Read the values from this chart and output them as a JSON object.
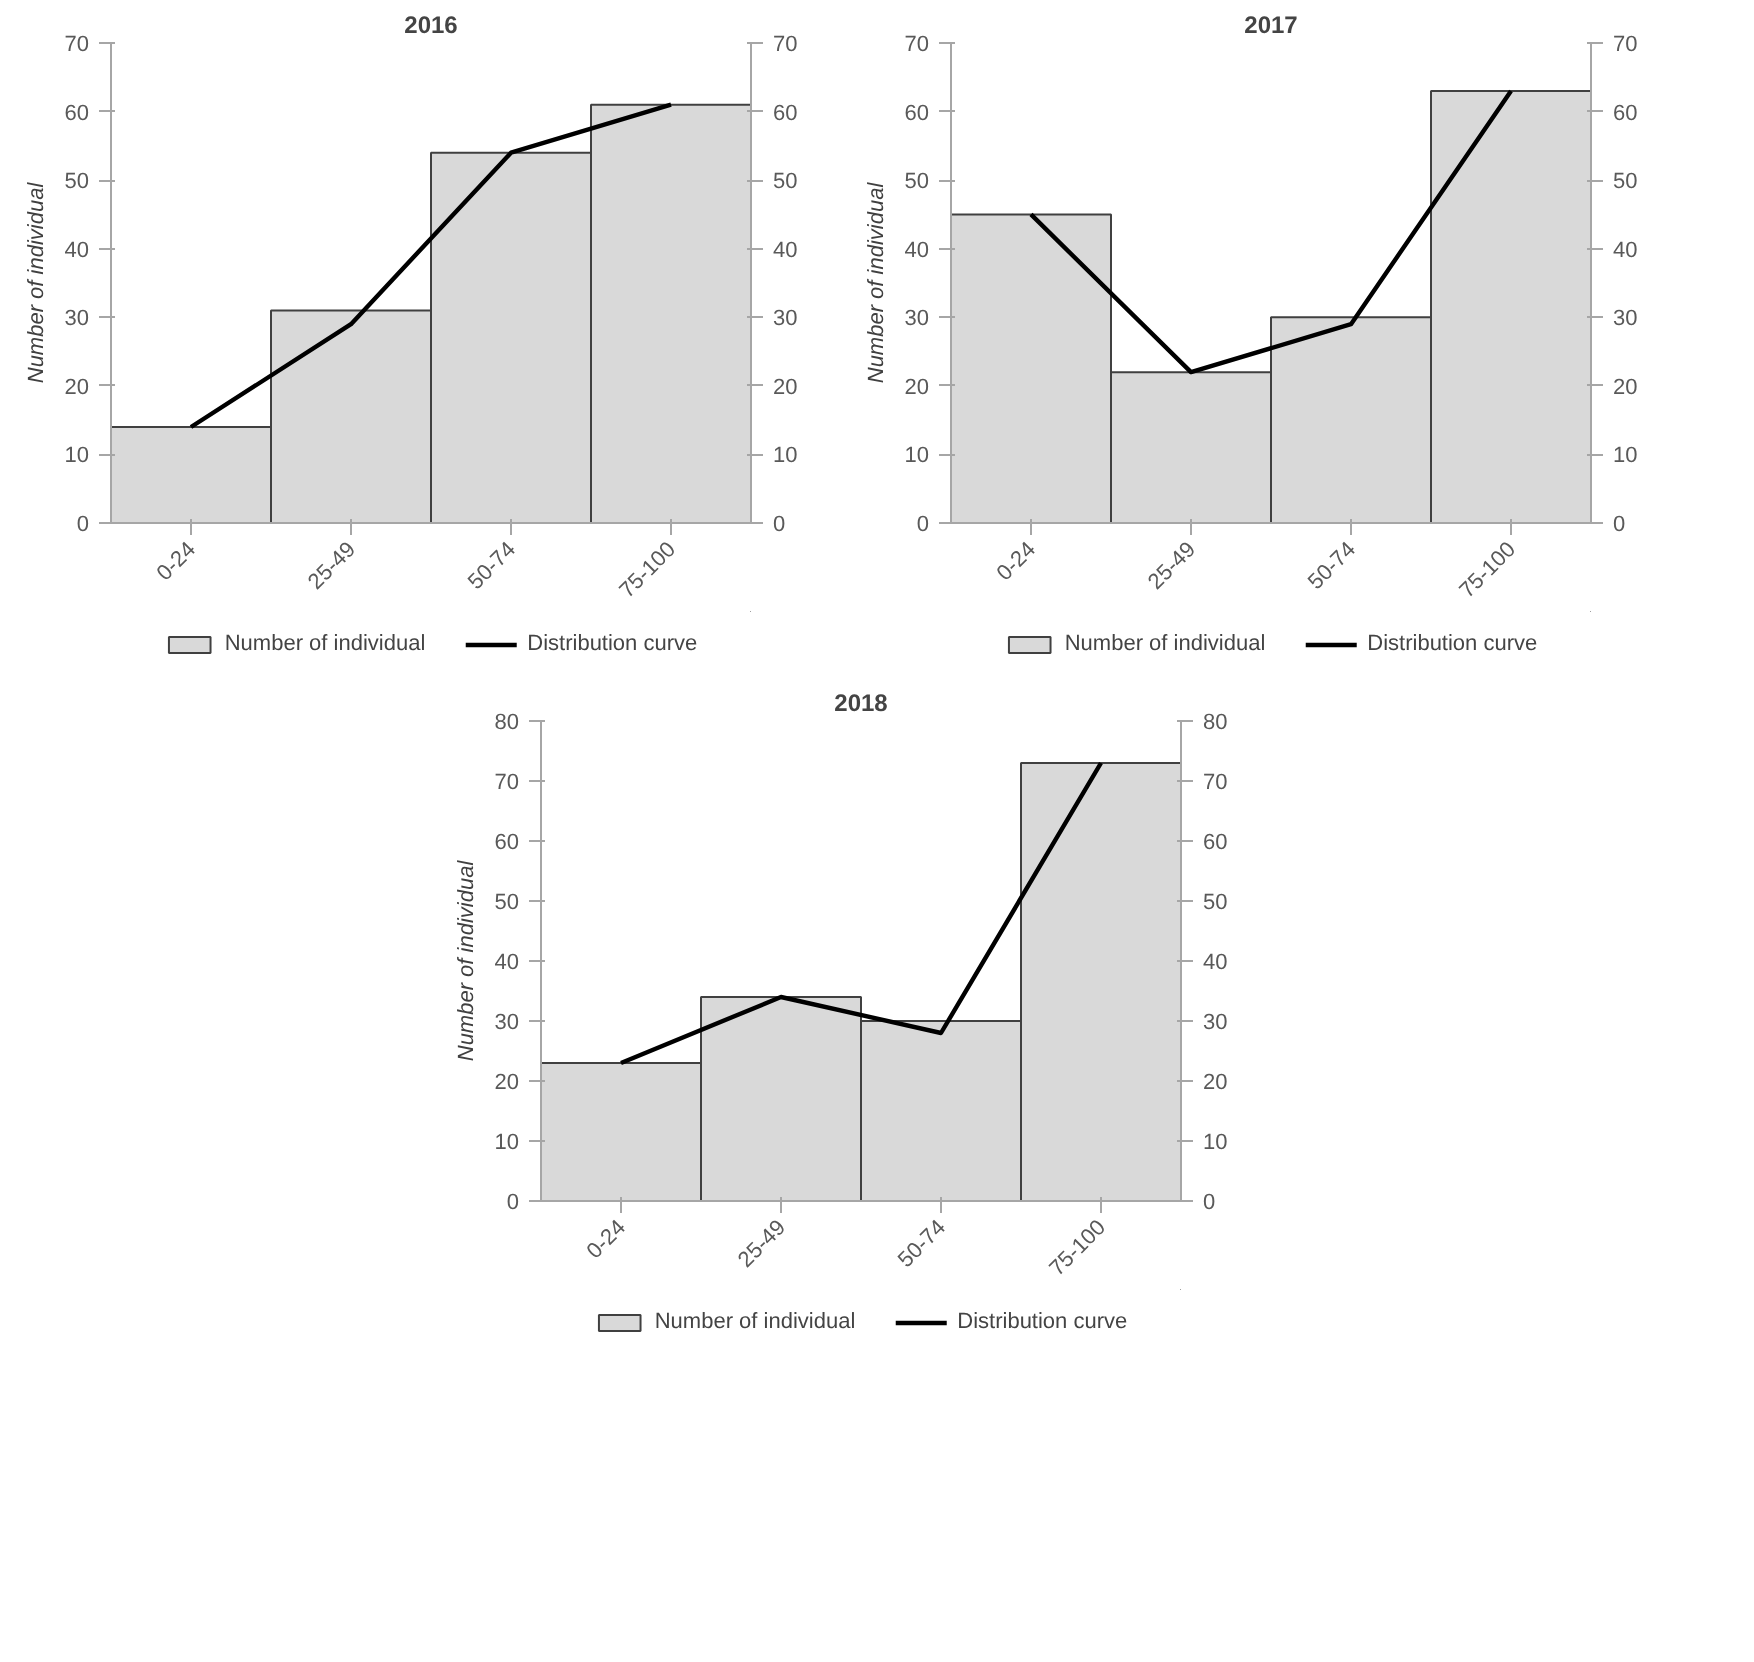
{
  "chart_data": [
    {
      "type": "bar",
      "title": "2016",
      "ylabel": "Number of individual",
      "categories": [
        "0-24",
        "25-49",
        "50-74",
        "75-100"
      ],
      "series": [
        {
          "name": "Number of individual",
          "color": "#d9d9d9",
          "values": [
            14,
            31,
            54,
            61
          ]
        },
        {
          "name": "Distribution curve",
          "type": "line",
          "color": "#000000",
          "values": [
            14,
            29,
            54,
            61
          ]
        }
      ],
      "ylim": [
        0,
        70
      ],
      "yticks": [
        0,
        10,
        20,
        30,
        40,
        50,
        60,
        70
      ],
      "y2lim": [
        0,
        70
      ],
      "y2ticks": [
        0,
        10,
        20,
        30,
        40,
        50,
        60,
        70
      ],
      "legend": "bottom"
    },
    {
      "type": "bar",
      "title": "2017",
      "ylabel": "Number of individual",
      "categories": [
        "0-24",
        "25-49",
        "50-74",
        "75-100"
      ],
      "series": [
        {
          "name": "Number of individual",
          "color": "#d9d9d9",
          "values": [
            45,
            22,
            30,
            63
          ]
        },
        {
          "name": "Distribution curve",
          "type": "line",
          "color": "#000000",
          "values": [
            45,
            22,
            29,
            63
          ]
        }
      ],
      "ylim": [
        0,
        70
      ],
      "yticks": [
        0,
        10,
        20,
        30,
        40,
        50,
        60,
        70
      ],
      "y2lim": [
        0,
        70
      ],
      "y2ticks": [
        0,
        10,
        20,
        30,
        40,
        50,
        60,
        70
      ],
      "legend": "bottom"
    },
    {
      "type": "bar",
      "title": "2018",
      "ylabel": "Number of individual",
      "categories": [
        "0-24",
        "25-49",
        "50-74",
        "75-100"
      ],
      "series": [
        {
          "name": "Number of individual",
          "color": "#d9d9d9",
          "values": [
            23,
            34,
            30,
            73
          ]
        },
        {
          "name": "Distribution curve",
          "type": "line",
          "color": "#000000",
          "values": [
            23,
            34,
            28,
            73
          ]
        }
      ],
      "ylim": [
        0,
        80
      ],
      "yticks": [
        0,
        10,
        20,
        30,
        40,
        50,
        60,
        70,
        80
      ],
      "y2lim": [
        0,
        80
      ],
      "y2ticks": [
        0,
        10,
        20,
        30,
        40,
        50,
        60,
        70,
        80
      ],
      "legend": "bottom"
    }
  ]
}
